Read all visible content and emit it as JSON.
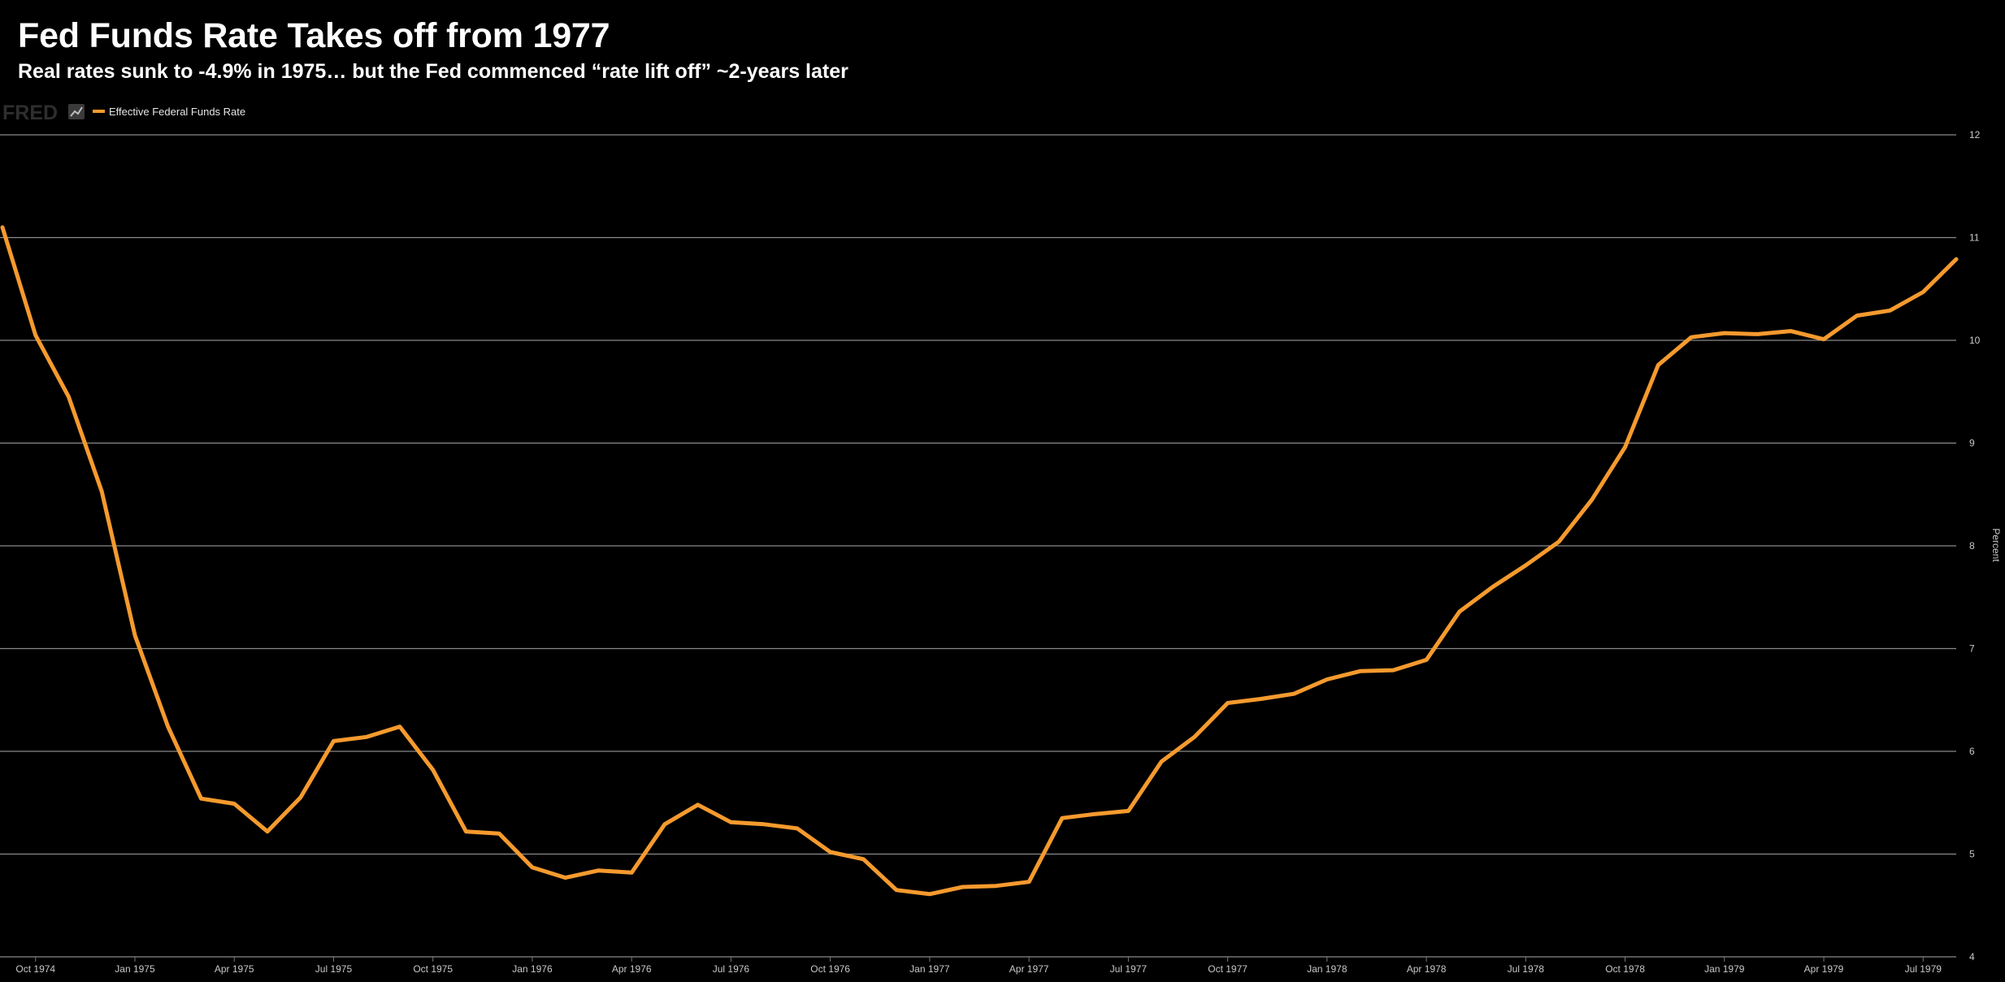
{
  "title": "Fed Funds Rate Takes off from 1977",
  "subtitle": "Real rates sunk to -4.9% in 1975… but the Fed commenced “rate lift off” ~2-years later",
  "brand": {
    "logo_text": "FRED",
    "icon": "chart-line-icon"
  },
  "colors": {
    "background": "#000000",
    "series": "#f59a2e",
    "grid": "#8a8a8a"
  },
  "chart_data": {
    "type": "line",
    "title": "Fed Funds Rate Takes off from 1977",
    "subtitle": "Real rates sunk to -4.9% in 1975… but the Fed commenced “rate lift off” ~2-years later",
    "xlabel": "",
    "ylabel": "Percent",
    "legend": "top-left",
    "grid": true,
    "ylim": [
      4,
      12
    ],
    "yticks": [
      4,
      5,
      6,
      7,
      8,
      9,
      10,
      11,
      12
    ],
    "xlim": [
      "1974-09",
      "1979-08"
    ],
    "xticks": [
      {
        "date": "1974-10",
        "label": "Oct 1974"
      },
      {
        "date": "1975-01",
        "label": "Jan 1975"
      },
      {
        "date": "1975-04",
        "label": "Apr 1975"
      },
      {
        "date": "1975-07",
        "label": "Jul 1975"
      },
      {
        "date": "1975-10",
        "label": "Oct 1975"
      },
      {
        "date": "1976-01",
        "label": "Jan 1976"
      },
      {
        "date": "1976-04",
        "label": "Apr 1976"
      },
      {
        "date": "1976-07",
        "label": "Jul 1976"
      },
      {
        "date": "1976-10",
        "label": "Oct 1976"
      },
      {
        "date": "1977-01",
        "label": "Jan 1977"
      },
      {
        "date": "1977-04",
        "label": "Apr 1977"
      },
      {
        "date": "1977-07",
        "label": "Jul 1977"
      },
      {
        "date": "1977-10",
        "label": "Oct 1977"
      },
      {
        "date": "1978-01",
        "label": "Jan 1978"
      },
      {
        "date": "1978-04",
        "label": "Apr 1978"
      },
      {
        "date": "1978-07",
        "label": "Jul 1978"
      },
      {
        "date": "1978-10",
        "label": "Oct 1978"
      },
      {
        "date": "1979-01",
        "label": "Jan 1979"
      },
      {
        "date": "1979-04",
        "label": "Apr 1979"
      },
      {
        "date": "1979-07",
        "label": "Jul 1979"
      }
    ],
    "series": [
      {
        "name": "Effective Federal Funds Rate",
        "x": [
          "1974-09",
          "1974-10",
          "1974-11",
          "1974-12",
          "1975-01",
          "1975-02",
          "1975-03",
          "1975-04",
          "1975-05",
          "1975-06",
          "1975-07",
          "1975-08",
          "1975-09",
          "1975-10",
          "1975-11",
          "1975-12",
          "1976-01",
          "1976-02",
          "1976-03",
          "1976-04",
          "1976-05",
          "1976-06",
          "1976-07",
          "1976-08",
          "1976-09",
          "1976-10",
          "1976-11",
          "1976-12",
          "1977-01",
          "1977-02",
          "1977-03",
          "1977-04",
          "1977-05",
          "1977-06",
          "1977-07",
          "1977-08",
          "1977-09",
          "1977-10",
          "1977-11",
          "1977-12",
          "1978-01",
          "1978-02",
          "1978-03",
          "1978-04",
          "1978-05",
          "1978-06",
          "1978-07",
          "1978-08",
          "1978-09",
          "1978-10",
          "1978-11",
          "1978-12",
          "1979-01",
          "1979-02",
          "1979-03",
          "1979-04",
          "1979-05",
          "1979-06",
          "1979-07",
          "1979-08"
        ],
        "y": [
          11.1,
          10.05,
          9.45,
          8.53,
          7.13,
          6.24,
          5.54,
          5.49,
          5.22,
          5.55,
          6.1,
          6.14,
          6.24,
          5.82,
          5.22,
          5.2,
          4.87,
          4.77,
          4.84,
          4.82,
          5.29,
          5.48,
          5.31,
          5.29,
          5.25,
          5.02,
          4.95,
          4.65,
          4.61,
          4.68,
          4.69,
          4.73,
          5.35,
          5.39,
          5.42,
          5.9,
          6.14,
          6.47,
          6.51,
          6.56,
          6.7,
          6.78,
          6.79,
          6.89,
          7.36,
          7.6,
          7.81,
          8.04,
          8.45,
          8.96,
          9.76,
          10.03,
          10.07,
          10.06,
          10.09,
          10.01,
          10.24,
          10.29,
          10.47,
          10.79
        ]
      }
    ]
  }
}
